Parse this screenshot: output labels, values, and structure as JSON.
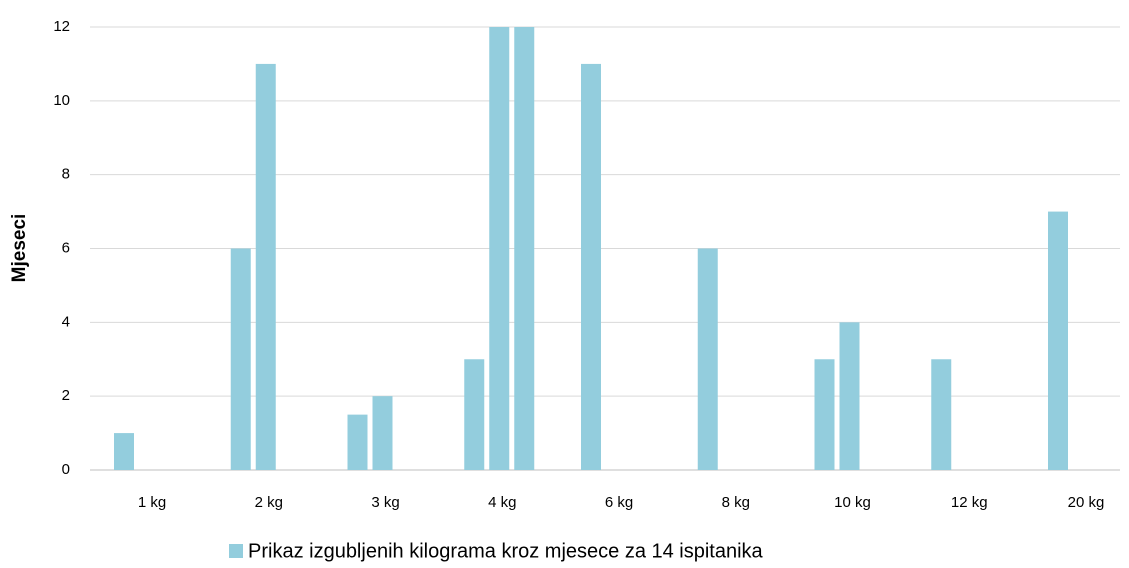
{
  "chart_data": {
    "type": "bar",
    "y_label": "Mjeseci",
    "categories": [
      "1 kg",
      "2 kg",
      "3 kg",
      "4 kg",
      "6 kg",
      "8 kg",
      "10 kg",
      "12 kg",
      "20 kg"
    ],
    "series": [
      {
        "name": "Prikaz izgubljenih kilograma kroz mjesece za 14 ispitanika",
        "color": "#93cddd",
        "values": [
          [
            1
          ],
          [
            6,
            11
          ],
          [
            1.5,
            2
          ],
          [
            3,
            12,
            12
          ],
          [
            11
          ],
          [
            6
          ],
          [
            3,
            4
          ],
          [
            3
          ],
          [
            7
          ]
        ]
      }
    ],
    "ylim": [
      0,
      12
    ],
    "yticks": [
      0,
      2,
      4,
      6,
      8,
      10,
      12
    ],
    "grid": true,
    "legend": "bottom"
  }
}
